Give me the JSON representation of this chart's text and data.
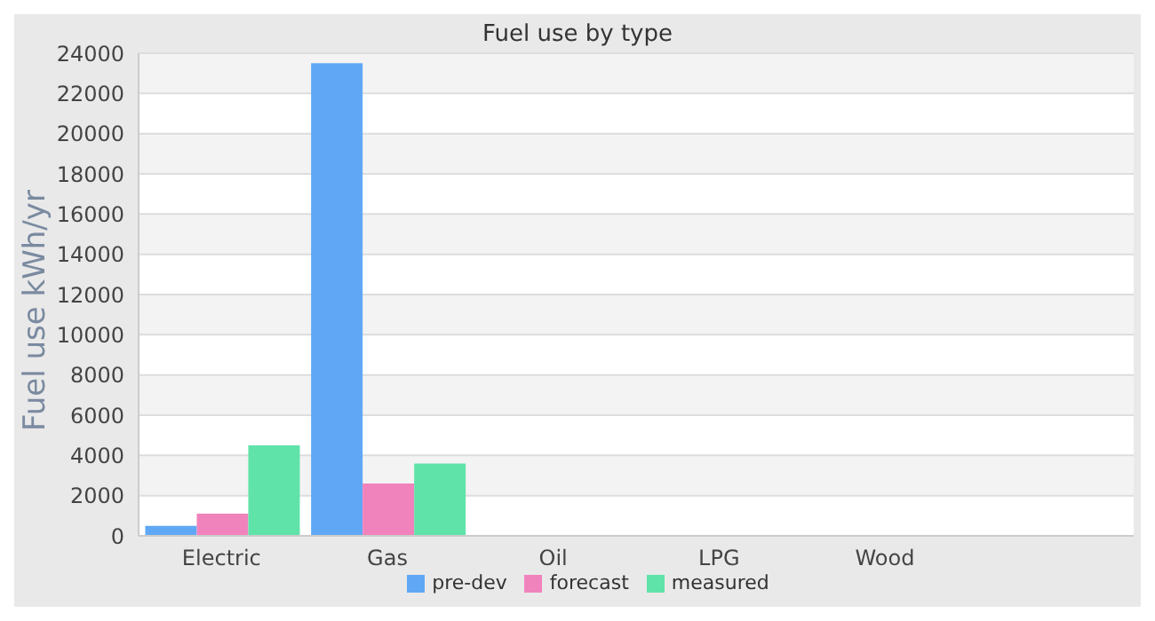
{
  "chart_data": {
    "type": "bar",
    "title": "Fuel use by type",
    "ylabel": "Fuel use  kWh/yr",
    "categories": [
      "Electric",
      "Gas",
      "Oil",
      "LPG",
      "Wood",
      null
    ],
    "series": [
      {
        "name": "pre-dev",
        "color": "#60a8f5",
        "values": [
          500,
          23500,
          null,
          null,
          null,
          null
        ]
      },
      {
        "name": "forecast",
        "color": "#f183bc",
        "values": [
          1100,
          2600,
          null,
          null,
          null,
          null
        ]
      },
      {
        "name": "measured",
        "color": "#60e3a9",
        "values": [
          4500,
          3600,
          null,
          null,
          null,
          null
        ]
      }
    ],
    "ylim": [
      0,
      24000
    ],
    "yticks": [
      0,
      2000,
      4000,
      6000,
      8000,
      10000,
      12000,
      14000,
      16000,
      18000,
      20000,
      22000,
      24000
    ],
    "grid": "y",
    "legend": "bottom"
  }
}
